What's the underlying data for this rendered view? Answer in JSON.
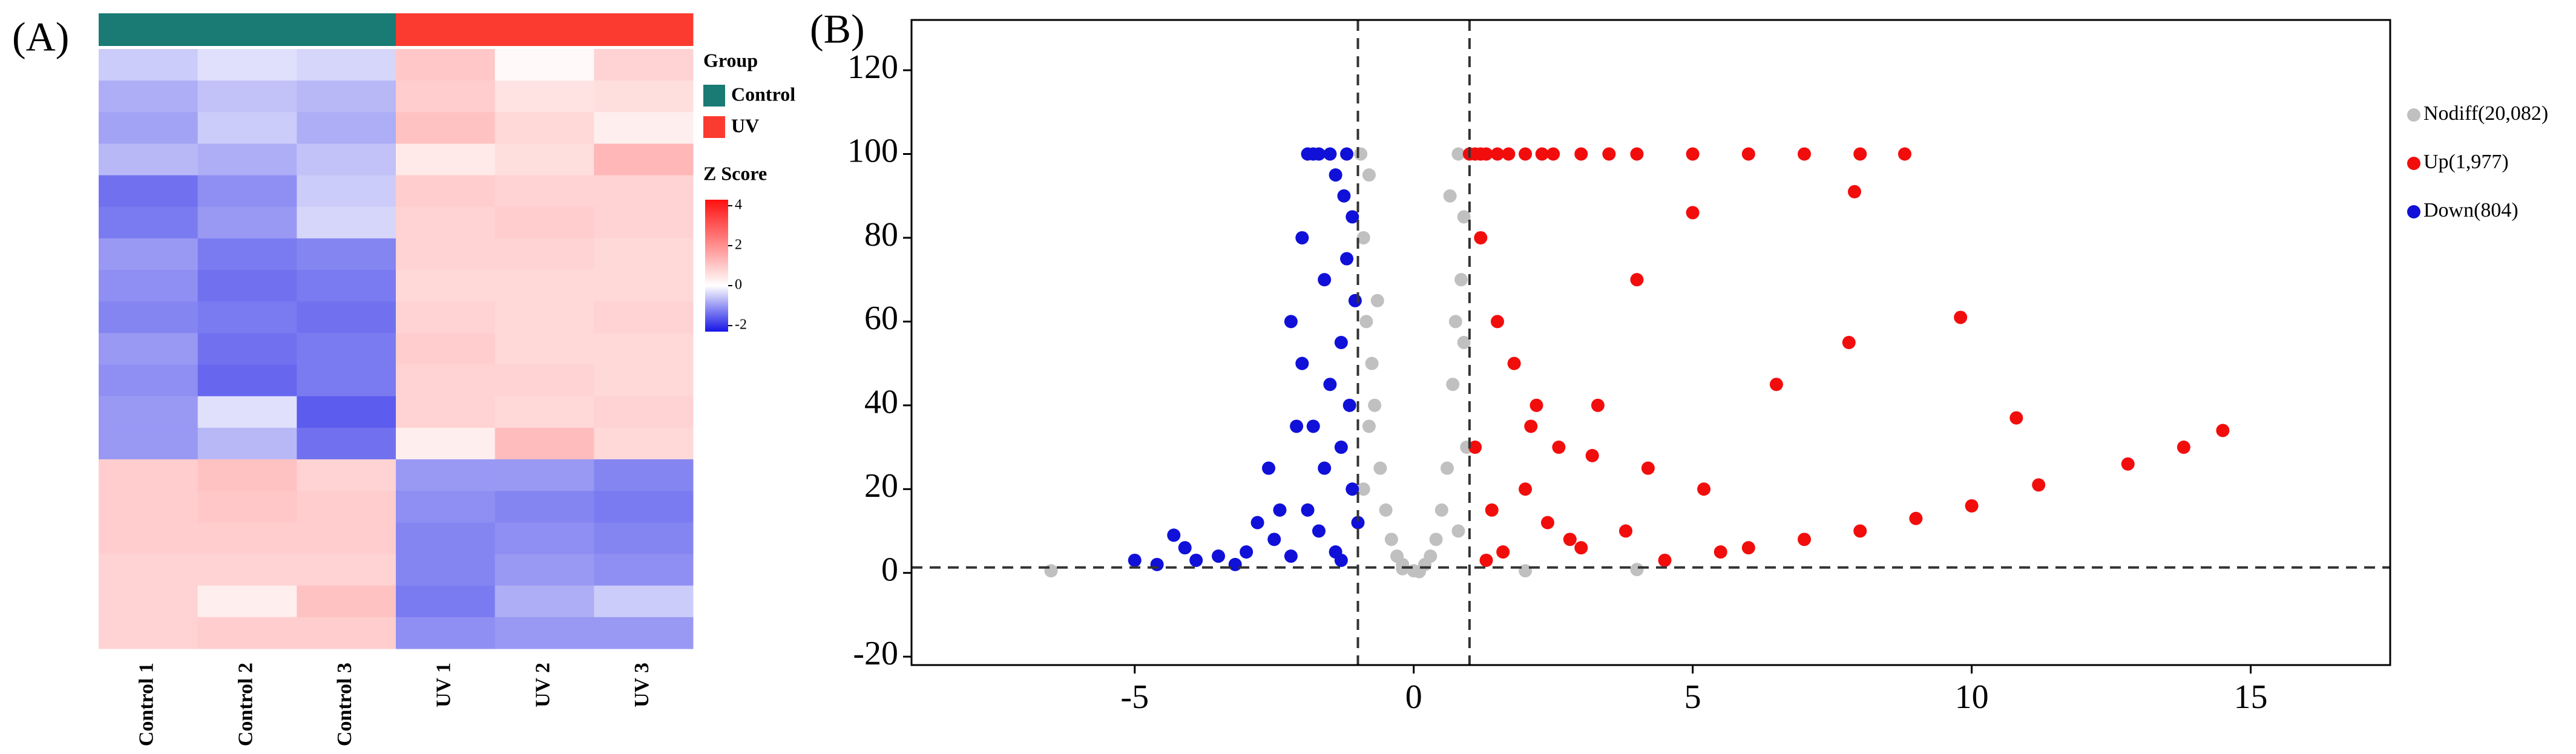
{
  "chart_data": [
    {
      "type": "heatmap",
      "label": "(A)",
      "columns": [
        "Control 1",
        "Control 2",
        "Control 3",
        "UV 1",
        "UV 2",
        "UV 3"
      ],
      "group_title": "Group",
      "groups": [
        {
          "name": "Control",
          "color": "#1a7a74"
        },
        {
          "name": "UV",
          "color": "#fb3a30"
        }
      ],
      "column_groups": [
        "Control",
        "Control",
        "Control",
        "UV",
        "UV",
        "UV"
      ],
      "colorbar_title": "Z Score",
      "zlim": [
        -2.3,
        4.3
      ],
      "zticks": [
        -2,
        0,
        2,
        4
      ],
      "colorscale": [
        "#1515e6",
        "#ffffff",
        "#ff1010"
      ],
      "values": [
        [
          -0.5,
          -0.3,
          -0.4,
          1.0,
          0.1,
          0.8
        ],
        [
          -0.8,
          -0.6,
          -0.7,
          0.9,
          0.5,
          0.6
        ],
        [
          -0.9,
          -0.5,
          -0.8,
          1.1,
          0.7,
          0.3
        ],
        [
          -0.7,
          -0.8,
          -0.6,
          0.4,
          0.6,
          1.3
        ],
        [
          -1.4,
          -1.1,
          -0.5,
          0.9,
          0.8,
          0.8
        ],
        [
          -1.3,
          -1.0,
          -0.4,
          0.8,
          0.9,
          0.8
        ],
        [
          -1.0,
          -1.3,
          -1.2,
          0.8,
          0.8,
          0.7
        ],
        [
          -1.1,
          -1.4,
          -1.3,
          0.7,
          0.7,
          0.7
        ],
        [
          -1.2,
          -1.3,
          -1.4,
          0.8,
          0.7,
          0.8
        ],
        [
          -1.0,
          -1.4,
          -1.3,
          0.9,
          0.7,
          0.7
        ],
        [
          -1.1,
          -1.5,
          -1.3,
          0.8,
          0.8,
          0.7
        ],
        [
          -1.0,
          -0.3,
          -1.6,
          0.8,
          0.7,
          0.8
        ],
        [
          -1.0,
          -0.7,
          -1.4,
          0.3,
          1.2,
          0.7
        ],
        [
          0.9,
          1.1,
          0.8,
          -1.0,
          -1.0,
          -1.2
        ],
        [
          0.9,
          1.0,
          0.9,
          -1.1,
          -1.2,
          -1.3
        ],
        [
          0.9,
          0.9,
          0.9,
          -1.2,
          -1.1,
          -1.2
        ],
        [
          0.8,
          0.8,
          0.8,
          -1.2,
          -1.0,
          -1.1
        ],
        [
          0.8,
          0.3,
          1.1,
          -1.3,
          -0.8,
          -0.5
        ],
        [
          0.8,
          0.9,
          0.9,
          -1.1,
          -1.0,
          -1.0
        ]
      ]
    },
    {
      "type": "scatter",
      "label": "(B)",
      "xlim": [
        -9,
        17.5
      ],
      "ylim": [
        -22,
        132
      ],
      "xticks": [
        -5,
        0,
        5,
        10,
        15
      ],
      "yticks": [
        -20,
        0,
        20,
        40,
        60,
        80,
        100,
        120
      ],
      "thresholds": {
        "x": [
          -1,
          1
        ],
        "y": 1.3
      },
      "series": [
        {
          "name": "Nodiff(20,082)",
          "color": "#c0c0c0",
          "x": [
            -6.5,
            -0.95,
            -0.9,
            -0.85,
            -0.8,
            -0.7,
            -0.6,
            -0.5,
            -0.4,
            -0.3,
            -0.2,
            0,
            0.2,
            0.3,
            0.4,
            0.5,
            0.6,
            0.7,
            0.8,
            0.85,
            0.9,
            0.95,
            -0.9,
            -0.8,
            0.9,
            0.8,
            -0.75,
            0.75,
            2,
            4,
            -0.65,
            0.65,
            -0.2,
            0.1
          ],
          "values": [
            0.5,
            100,
            80,
            60,
            95,
            40,
            25,
            15,
            8,
            4,
            2,
            0.5,
            2,
            4,
            8,
            15,
            25,
            45,
            100,
            70,
            55,
            30,
            20,
            35,
            85,
            10,
            50,
            60,
            0.5,
            0.8,
            65,
            90,
            1,
            0.3
          ]
        },
        {
          "name": "Up(1,977)",
          "color": "#f20d0d",
          "x": [
            1.0,
            1.1,
            1.2,
            1.3,
            1.5,
            1.7,
            2.0,
            2.3,
            2.5,
            3.0,
            3.5,
            4.0,
            5.0,
            6.0,
            7.0,
            8.0,
            8.8,
            1.2,
            1.5,
            1.8,
            2.2,
            2.6,
            3.2,
            4.2,
            5.2,
            6.5,
            7.8,
            9.8,
            10.8,
            12.8,
            13.8,
            14.5,
            11.2,
            10.0,
            9.0,
            8.0,
            7.0,
            6.0,
            5.5,
            4.5,
            3.8,
            2.8,
            1.4,
            1.6,
            2.0,
            2.4,
            3.0,
            1.1,
            1.3,
            7.9,
            5.0,
            4.0,
            3.3,
            2.1
          ],
          "values": [
            100,
            100,
            100,
            100,
            100,
            100,
            100,
            100,
            100,
            100,
            100,
            100,
            100,
            100,
            100,
            100,
            100,
            80,
            60,
            50,
            40,
            30,
            28,
            25,
            20,
            45,
            55,
            61,
            37,
            26,
            30,
            34,
            21,
            16,
            13,
            10,
            8,
            6,
            5,
            3,
            10,
            8,
            15,
            5,
            20,
            12,
            6,
            30,
            3,
            91,
            86,
            70,
            40,
            35
          ]
        },
        {
          "name": "Down(804)",
          "color": "#1010d8",
          "x": [
            -5.0,
            -4.6,
            -4.3,
            -4.1,
            -3.9,
            -3.5,
            -3.2,
            -3.0,
            -2.8,
            -2.6,
            -2.5,
            -2.4,
            -2.2,
            -2.1,
            -2.0,
            -1.9,
            -1.8,
            -1.7,
            -1.6,
            -1.5,
            -1.4,
            -1.3,
            -1.25,
            -1.2,
            -1.15,
            -1.1,
            -1.05,
            -1.3,
            -1.5,
            -1.7,
            -1.9,
            -2.0,
            -1.2,
            -1.4,
            -1.6,
            -1.8,
            -2.2,
            -1.1,
            -1.3,
            -1.0
          ],
          "values": [
            3,
            2,
            9,
            6,
            3,
            4,
            2,
            5,
            12,
            25,
            8,
            15,
            60,
            35,
            80,
            100,
            100,
            100,
            70,
            100,
            95,
            55,
            90,
            100,
            40,
            20,
            65,
            30,
            45,
            10,
            15,
            50,
            75,
            5,
            25,
            35,
            4,
            85,
            3,
            12
          ]
        }
      ]
    }
  ]
}
